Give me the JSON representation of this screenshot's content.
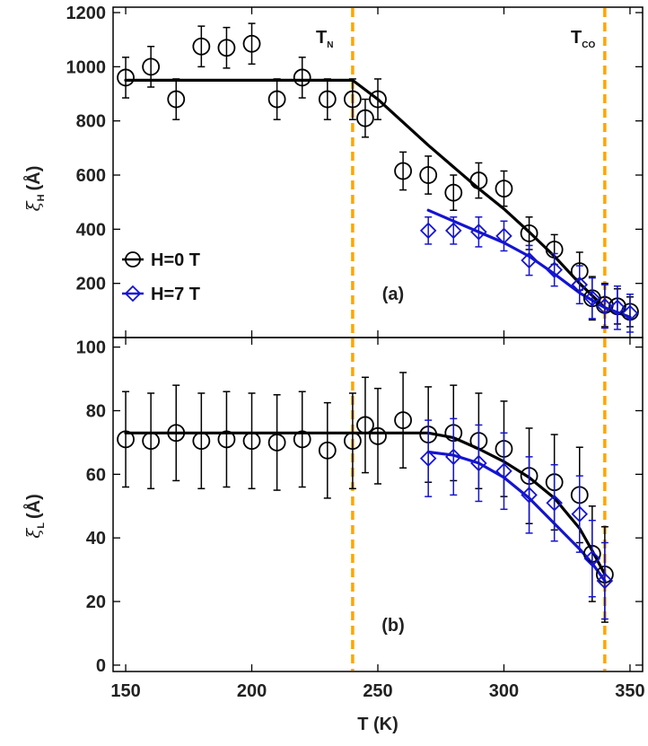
{
  "colors": {
    "h0": "#000000",
    "h7": "#1414d2",
    "marker_line": "#ffa500",
    "axis": "#000000"
  },
  "chart_data": [
    {
      "panel": "(a)",
      "type": "scatter",
      "xlabel": "T (K)",
      "ylabel": "ξH (Å)",
      "ylabel_main": "ξ",
      "ylabel_sub": "H",
      "ylabel_unit": "(Å)",
      "xlim": [
        145,
        355
      ],
      "ylim": [
        0,
        1220
      ],
      "xticks": [
        150,
        200,
        250,
        300,
        350
      ],
      "yticks": [
        200,
        400,
        600,
        800,
        1000,
        1200
      ],
      "legend": {
        "placement": "lower-left",
        "entries": [
          "H=0 T",
          "H=7 T"
        ]
      },
      "series": [
        {
          "name": "H=0 T",
          "marker": "circle",
          "x": [
            150,
            160,
            170,
            180,
            190,
            200,
            210,
            220,
            230,
            240,
            245,
            250,
            260,
            270,
            280,
            290,
            300,
            310,
            320,
            330,
            335,
            340,
            345,
            350
          ],
          "y": [
            960,
            1000,
            880,
            1075,
            1070,
            1085,
            880,
            960,
            880,
            880,
            810,
            880,
            615,
            600,
            535,
            580,
            550,
            385,
            325,
            245,
            145,
            120,
            115,
            95
          ],
          "err": [
            75,
            75,
            75,
            75,
            75,
            75,
            75,
            75,
            75,
            75,
            70,
            75,
            70,
            70,
            65,
            65,
            65,
            60,
            55,
            70,
            80,
            80,
            65,
            55
          ],
          "fit": {
            "x": [
              150,
              240,
              250,
              260,
              270,
              280,
              290,
              300,
              310,
              320,
              330,
              340,
              350
            ],
            "y": [
              950,
              950,
              880,
              795,
              710,
              630,
              550,
              475,
              390,
              300,
              200,
              110,
              75
            ]
          }
        },
        {
          "name": "H=7 T",
          "marker": "diamond",
          "x": [
            270,
            280,
            290,
            300,
            310,
            320,
            330,
            335,
            340,
            345,
            350
          ],
          "y": [
            395,
            395,
            390,
            375,
            285,
            250,
            195,
            145,
            115,
            110,
            90
          ],
          "err": [
            50,
            50,
            55,
            55,
            55,
            60,
            70,
            75,
            80,
            80,
            70
          ],
          "fit": {
            "x": [
              270,
              280,
              290,
              300,
              310,
              320,
              330,
              340,
              350
            ],
            "y": [
              470,
              430,
              390,
              350,
              300,
              235,
              165,
              110,
              75
            ]
          }
        }
      ],
      "annotations": [
        {
          "text": "T",
          "sub": "N",
          "x": 240
        },
        {
          "text": "T",
          "sub": "CO",
          "x": 340
        }
      ],
      "vlines": [
        240,
        340
      ]
    },
    {
      "panel": "(b)",
      "type": "scatter",
      "xlabel": "T (K)",
      "ylabel": "ξL (Å)",
      "ylabel_main": "ξ",
      "ylabel_sub": "L",
      "ylabel_unit": "(Å)",
      "xlim": [
        145,
        355
      ],
      "ylim": [
        -2,
        103
      ],
      "xticks": [
        150,
        200,
        250,
        300,
        350
      ],
      "yticks": [
        0,
        20,
        40,
        60,
        80,
        100
      ],
      "series": [
        {
          "name": "H=0 T",
          "marker": "circle",
          "x": [
            150,
            160,
            170,
            180,
            190,
            200,
            210,
            220,
            230,
            240,
            245,
            250,
            260,
            270,
            280,
            290,
            300,
            310,
            320,
            330,
            335,
            340
          ],
          "y": [
            71,
            70.5,
            73,
            70.5,
            71,
            70.5,
            70,
            71,
            67.5,
            70.5,
            75.5,
            72,
            77,
            72.5,
            73,
            70.5,
            68,
            59.5,
            57.5,
            53.5,
            35,
            28.5
          ],
          "err": [
            15,
            15,
            15,
            15,
            15,
            15,
            15,
            15,
            15,
            15,
            15,
            15,
            15,
            15,
            15,
            15,
            15,
            15,
            15,
            15,
            15,
            15
          ],
          "fit": {
            "x": [
              150,
              270,
              280,
              290,
              300,
              310,
              320,
              330,
              335,
              340
            ],
            "y": [
              73,
              73,
              71.5,
              68,
              64,
              59,
              52.5,
              43,
              36,
              28.5
            ]
          }
        },
        {
          "name": "H=7 T",
          "marker": "diamond",
          "x": [
            270,
            280,
            290,
            300,
            310,
            320,
            330,
            335,
            340
          ],
          "y": [
            65,
            65.5,
            63.5,
            61,
            53.5,
            51,
            47.5,
            33.5,
            26.5
          ],
          "err": [
            12,
            12,
            12,
            12,
            12,
            12,
            12,
            12,
            12
          ],
          "fit": {
            "x": [
              270,
              280,
              290,
              300,
              310,
              320,
              330,
              335,
              340
            ],
            "y": [
              67,
              66,
              63.5,
              59,
              52.5,
              44.5,
              36.5,
              32,
              26.5
            ]
          }
        }
      ],
      "vlines": [
        240,
        340
      ]
    }
  ]
}
